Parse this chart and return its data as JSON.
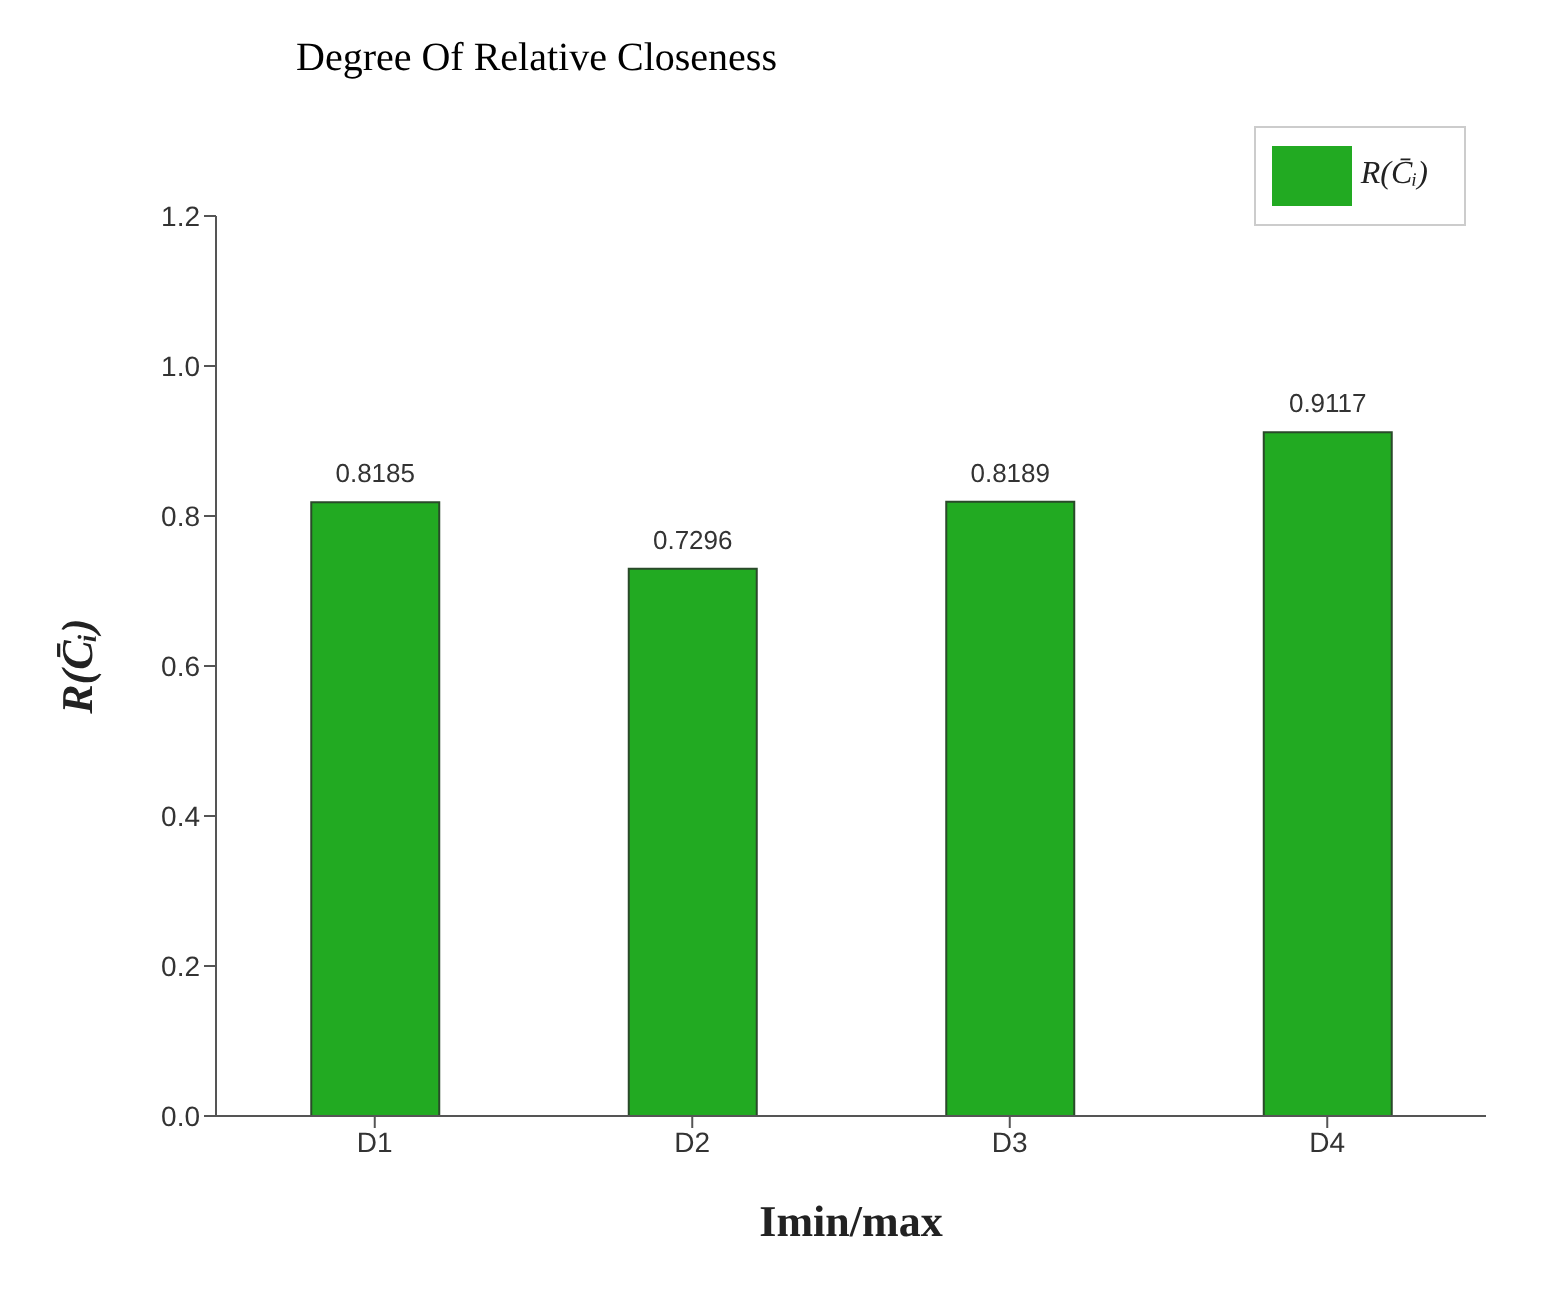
{
  "chart_data": {
    "type": "bar",
    "title": "Degree Of Relative Closeness",
    "xlabel": "Imin/max",
    "ylabel": "R(C̄ᵢ)",
    "categories": [
      "D1",
      "D2",
      "D3",
      "D4"
    ],
    "series": [
      {
        "name": "R(C̄ᵢ)",
        "color": "#22aa22",
        "values": [
          0.8185,
          0.7296,
          0.8189,
          0.9117
        ]
      }
    ],
    "ylim": [
      0,
      1.2
    ],
    "yticks": [
      {
        "value": 0,
        "label": "0.0"
      },
      0.2,
      0.4,
      0.6,
      0.8,
      {
        "value": 1,
        "label": "1.0"
      },
      1.2
    ],
    "data_labels": true,
    "grid": false,
    "legend": "top right"
  }
}
